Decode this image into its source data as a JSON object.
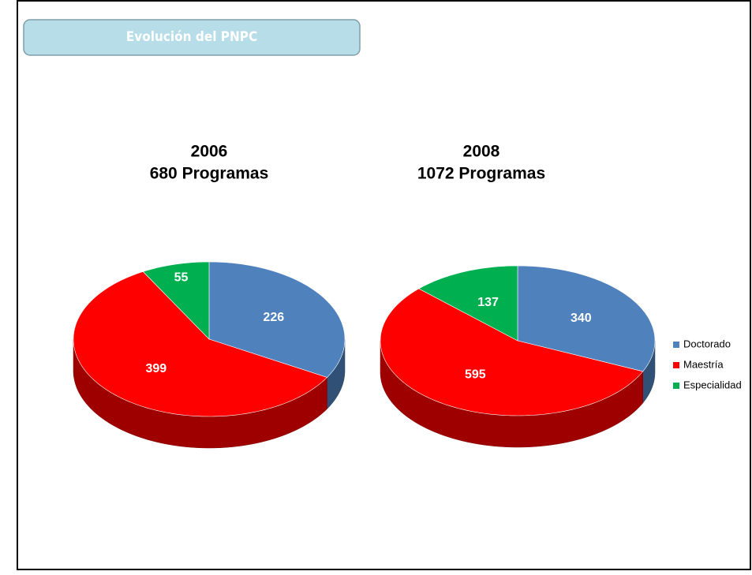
{
  "slide_title": "Evolución del PNPC",
  "chart_data": [
    {
      "type": "pie",
      "title": "2006",
      "subtitle": "680 Programas",
      "categories": [
        "Doctorado",
        "Maestría",
        "Especialidad"
      ],
      "values": [
        226,
        399,
        55
      ],
      "colors": [
        "#4f81bd",
        "#ff0000",
        "#00b050"
      ],
      "legend": "right"
    },
    {
      "type": "pie",
      "title": "2008",
      "subtitle": "1072 Programas",
      "categories": [
        "Doctorado",
        "Maestría",
        "Especialidad"
      ],
      "values": [
        340,
        595,
        137
      ],
      "colors": [
        "#4f81bd",
        "#ff0000",
        "#00b050"
      ],
      "legend": "right"
    }
  ]
}
